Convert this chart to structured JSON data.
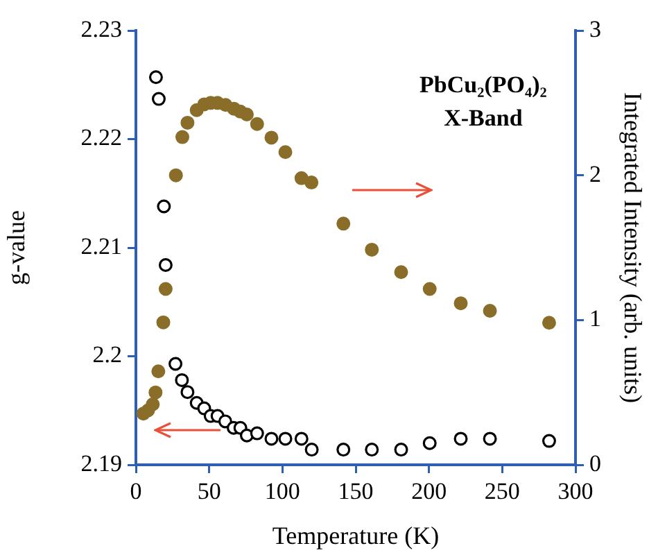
{
  "chart_data": {
    "type": "scatter",
    "xlabel": "Temperature (K)",
    "ylabel": "g-value",
    "y2label": "Integrated Intensity (arb. units)",
    "xlim": [
      0,
      300
    ],
    "xticks": [
      0,
      50,
      100,
      150,
      200,
      250,
      300
    ],
    "ylim": [
      2.19,
      2.23
    ],
    "yticks": [
      {
        "value": 2.19,
        "label": "2.19"
      },
      {
        "value": 2.2,
        "label": "2.2"
      },
      {
        "value": 2.21,
        "label": "2.21"
      },
      {
        "value": 2.22,
        "label": "2.22"
      },
      {
        "value": 2.23,
        "label": "2.23"
      }
    ],
    "y2lim": [
      0,
      3
    ],
    "y2ticks": [
      0,
      1,
      2,
      3
    ],
    "marker": "circle",
    "grid": false,
    "legend": false,
    "annotations": [
      "PbCu₂(PO₄)₂",
      "X-Band"
    ],
    "series": [
      {
        "color": "#000000",
        "axis": "y",
        "x": [
          13.7,
          15.6,
          19.1,
          20.3,
          27,
          31.4,
          35.2,
          41.5,
          46.6,
          51,
          55.7,
          61,
          66.7,
          71.3,
          75.7,
          82.7,
          92.5,
          102,
          113,
          120,
          141.6,
          161,
          181,
          200.5,
          221.7,
          241.6,
          282
        ],
        "values": [
          2.2257,
          2.2237,
          2.2138,
          2.2084,
          2.1993,
          2.1978,
          2.1967,
          2.1957,
          2.1952,
          2.1945,
          2.1945,
          2.194,
          2.1934,
          2.1934,
          2.1927,
          2.1929,
          2.1924,
          2.1924,
          2.1924,
          2.1914,
          2.1914,
          2.1914,
          2.1914,
          2.192,
          2.1924,
          2.1924,
          2.1922
        ]
      },
      {
        "color": "#8b6d2a",
        "axis": "y2",
        "x": [
          5.1,
          8.3,
          11.5,
          13.4,
          15.3,
          18.7,
          20.3,
          27.3,
          31.7,
          35.2,
          41.5,
          46.6,
          51,
          55.7,
          61.2,
          66.9,
          71.3,
          75.7,
          82.7,
          92.5,
          102,
          113,
          119.8,
          141.6,
          161,
          181,
          200.5,
          221.7,
          241.6,
          282
        ],
        "values": [
          0.354,
          0.376,
          0.418,
          0.5,
          0.646,
          0.984,
          1.215,
          2.0,
          2.264,
          2.363,
          2.45,
          2.49,
          2.5,
          2.5,
          2.486,
          2.46,
          2.44,
          2.42,
          2.354,
          2.26,
          2.16,
          1.98,
          1.95,
          1.666,
          1.486,
          1.331,
          1.215,
          1.116,
          1.064,
          0.981
        ]
      }
    ]
  }
}
